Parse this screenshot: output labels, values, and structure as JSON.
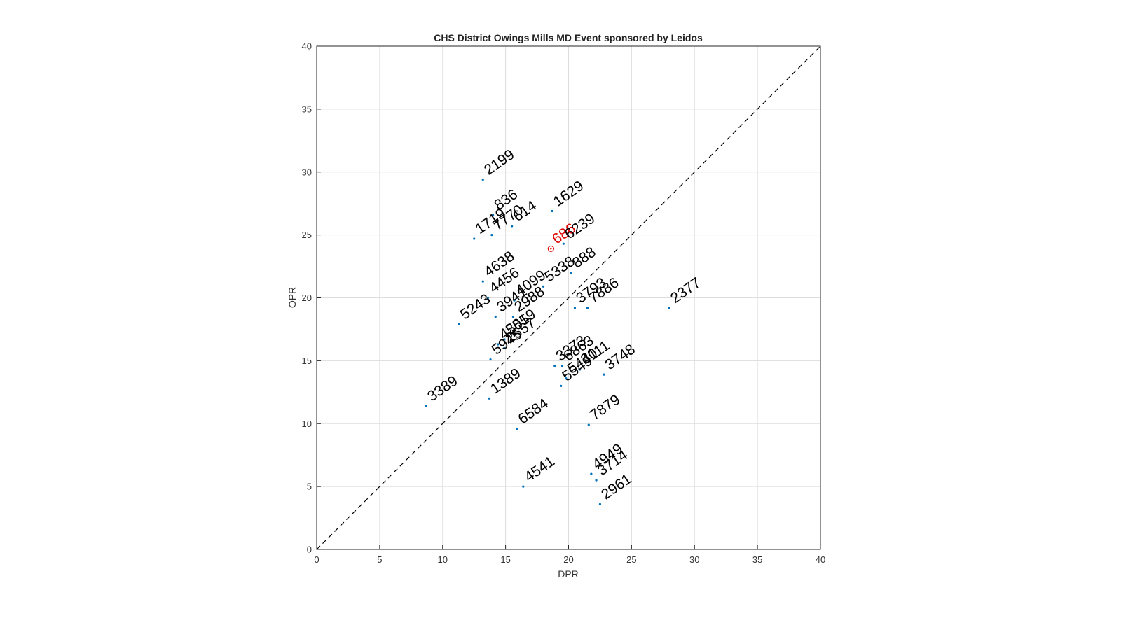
{
  "chart_data": {
    "type": "scatter",
    "title": "CHS District Owings Mills MD Event sponsored by Leidos",
    "xlabel": "DPR",
    "ylabel": "OPR",
    "xlim": [
      0,
      40
    ],
    "ylim": [
      0,
      40
    ],
    "xticks": [
      "0",
      "5",
      "10",
      "15",
      "20",
      "25",
      "30",
      "35",
      "40"
    ],
    "yticks": [
      "0",
      "5",
      "10",
      "15",
      "20",
      "25",
      "30",
      "35",
      "40"
    ],
    "grid": true,
    "reference_line": "y = x (dashed)",
    "colors": {
      "point": "#0072BD",
      "label": "#000000",
      "highlight": "#E00000",
      "grid": "#DDDDDD"
    },
    "points": [
      {
        "label": "2199",
        "x": 13.2,
        "y": 29.4
      },
      {
        "label": "836",
        "x": 14.0,
        "y": 26.6
      },
      {
        "label": "1629",
        "x": 18.7,
        "y": 26.9
      },
      {
        "label": "1719",
        "x": 12.5,
        "y": 24.7
      },
      {
        "label": "7770",
        "x": 13.9,
        "y": 25.0
      },
      {
        "label": "614",
        "x": 15.5,
        "y": 25.7
      },
      {
        "label": "686",
        "x": 18.6,
        "y": 23.9,
        "highlight": true
      },
      {
        "label": "6239",
        "x": 19.6,
        "y": 24.3
      },
      {
        "label": "4638",
        "x": 13.2,
        "y": 21.3
      },
      {
        "label": "888",
        "x": 20.2,
        "y": 22.0
      },
      {
        "label": "5338",
        "x": 18.0,
        "y": 20.9
      },
      {
        "label": "4456",
        "x": 13.6,
        "y": 20.0
      },
      {
        "label": "4099",
        "x": 15.7,
        "y": 19.8
      },
      {
        "label": "3793",
        "x": 20.5,
        "y": 19.2
      },
      {
        "label": "7886",
        "x": 21.5,
        "y": 19.2
      },
      {
        "label": "2377",
        "x": 28.0,
        "y": 19.2
      },
      {
        "label": "5243",
        "x": 11.3,
        "y": 17.9
      },
      {
        "label": "3941",
        "x": 14.2,
        "y": 18.5
      },
      {
        "label": "2988",
        "x": 15.6,
        "y": 18.5
      },
      {
        "label": "2819",
        "x": 14.9,
        "y": 16.7
      },
      {
        "label": "4505",
        "x": 14.4,
        "y": 16.3
      },
      {
        "label": "2557",
        "x": 14.9,
        "y": 16.0
      },
      {
        "label": "5945",
        "x": 13.8,
        "y": 15.1
      },
      {
        "label": "3373",
        "x": 18.9,
        "y": 14.6
      },
      {
        "label": "6863",
        "x": 19.5,
        "y": 14.6
      },
      {
        "label": "4111",
        "x": 20.9,
        "y": 14.3
      },
      {
        "label": "5420",
        "x": 19.8,
        "y": 13.6
      },
      {
        "label": "5549",
        "x": 19.4,
        "y": 13.0
      },
      {
        "label": "3748",
        "x": 22.8,
        "y": 13.9
      },
      {
        "label": "3389",
        "x": 8.7,
        "y": 11.4
      },
      {
        "label": "1389",
        "x": 13.7,
        "y": 12.0
      },
      {
        "label": "6584",
        "x": 15.9,
        "y": 9.6
      },
      {
        "label": "7879",
        "x": 21.6,
        "y": 9.9
      },
      {
        "label": "4949",
        "x": 21.8,
        "y": 6.0
      },
      {
        "label": "3714",
        "x": 22.2,
        "y": 5.5
      },
      {
        "label": "4541",
        "x": 16.4,
        "y": 5.0
      },
      {
        "label": "2961",
        "x": 22.5,
        "y": 3.6
      }
    ]
  }
}
